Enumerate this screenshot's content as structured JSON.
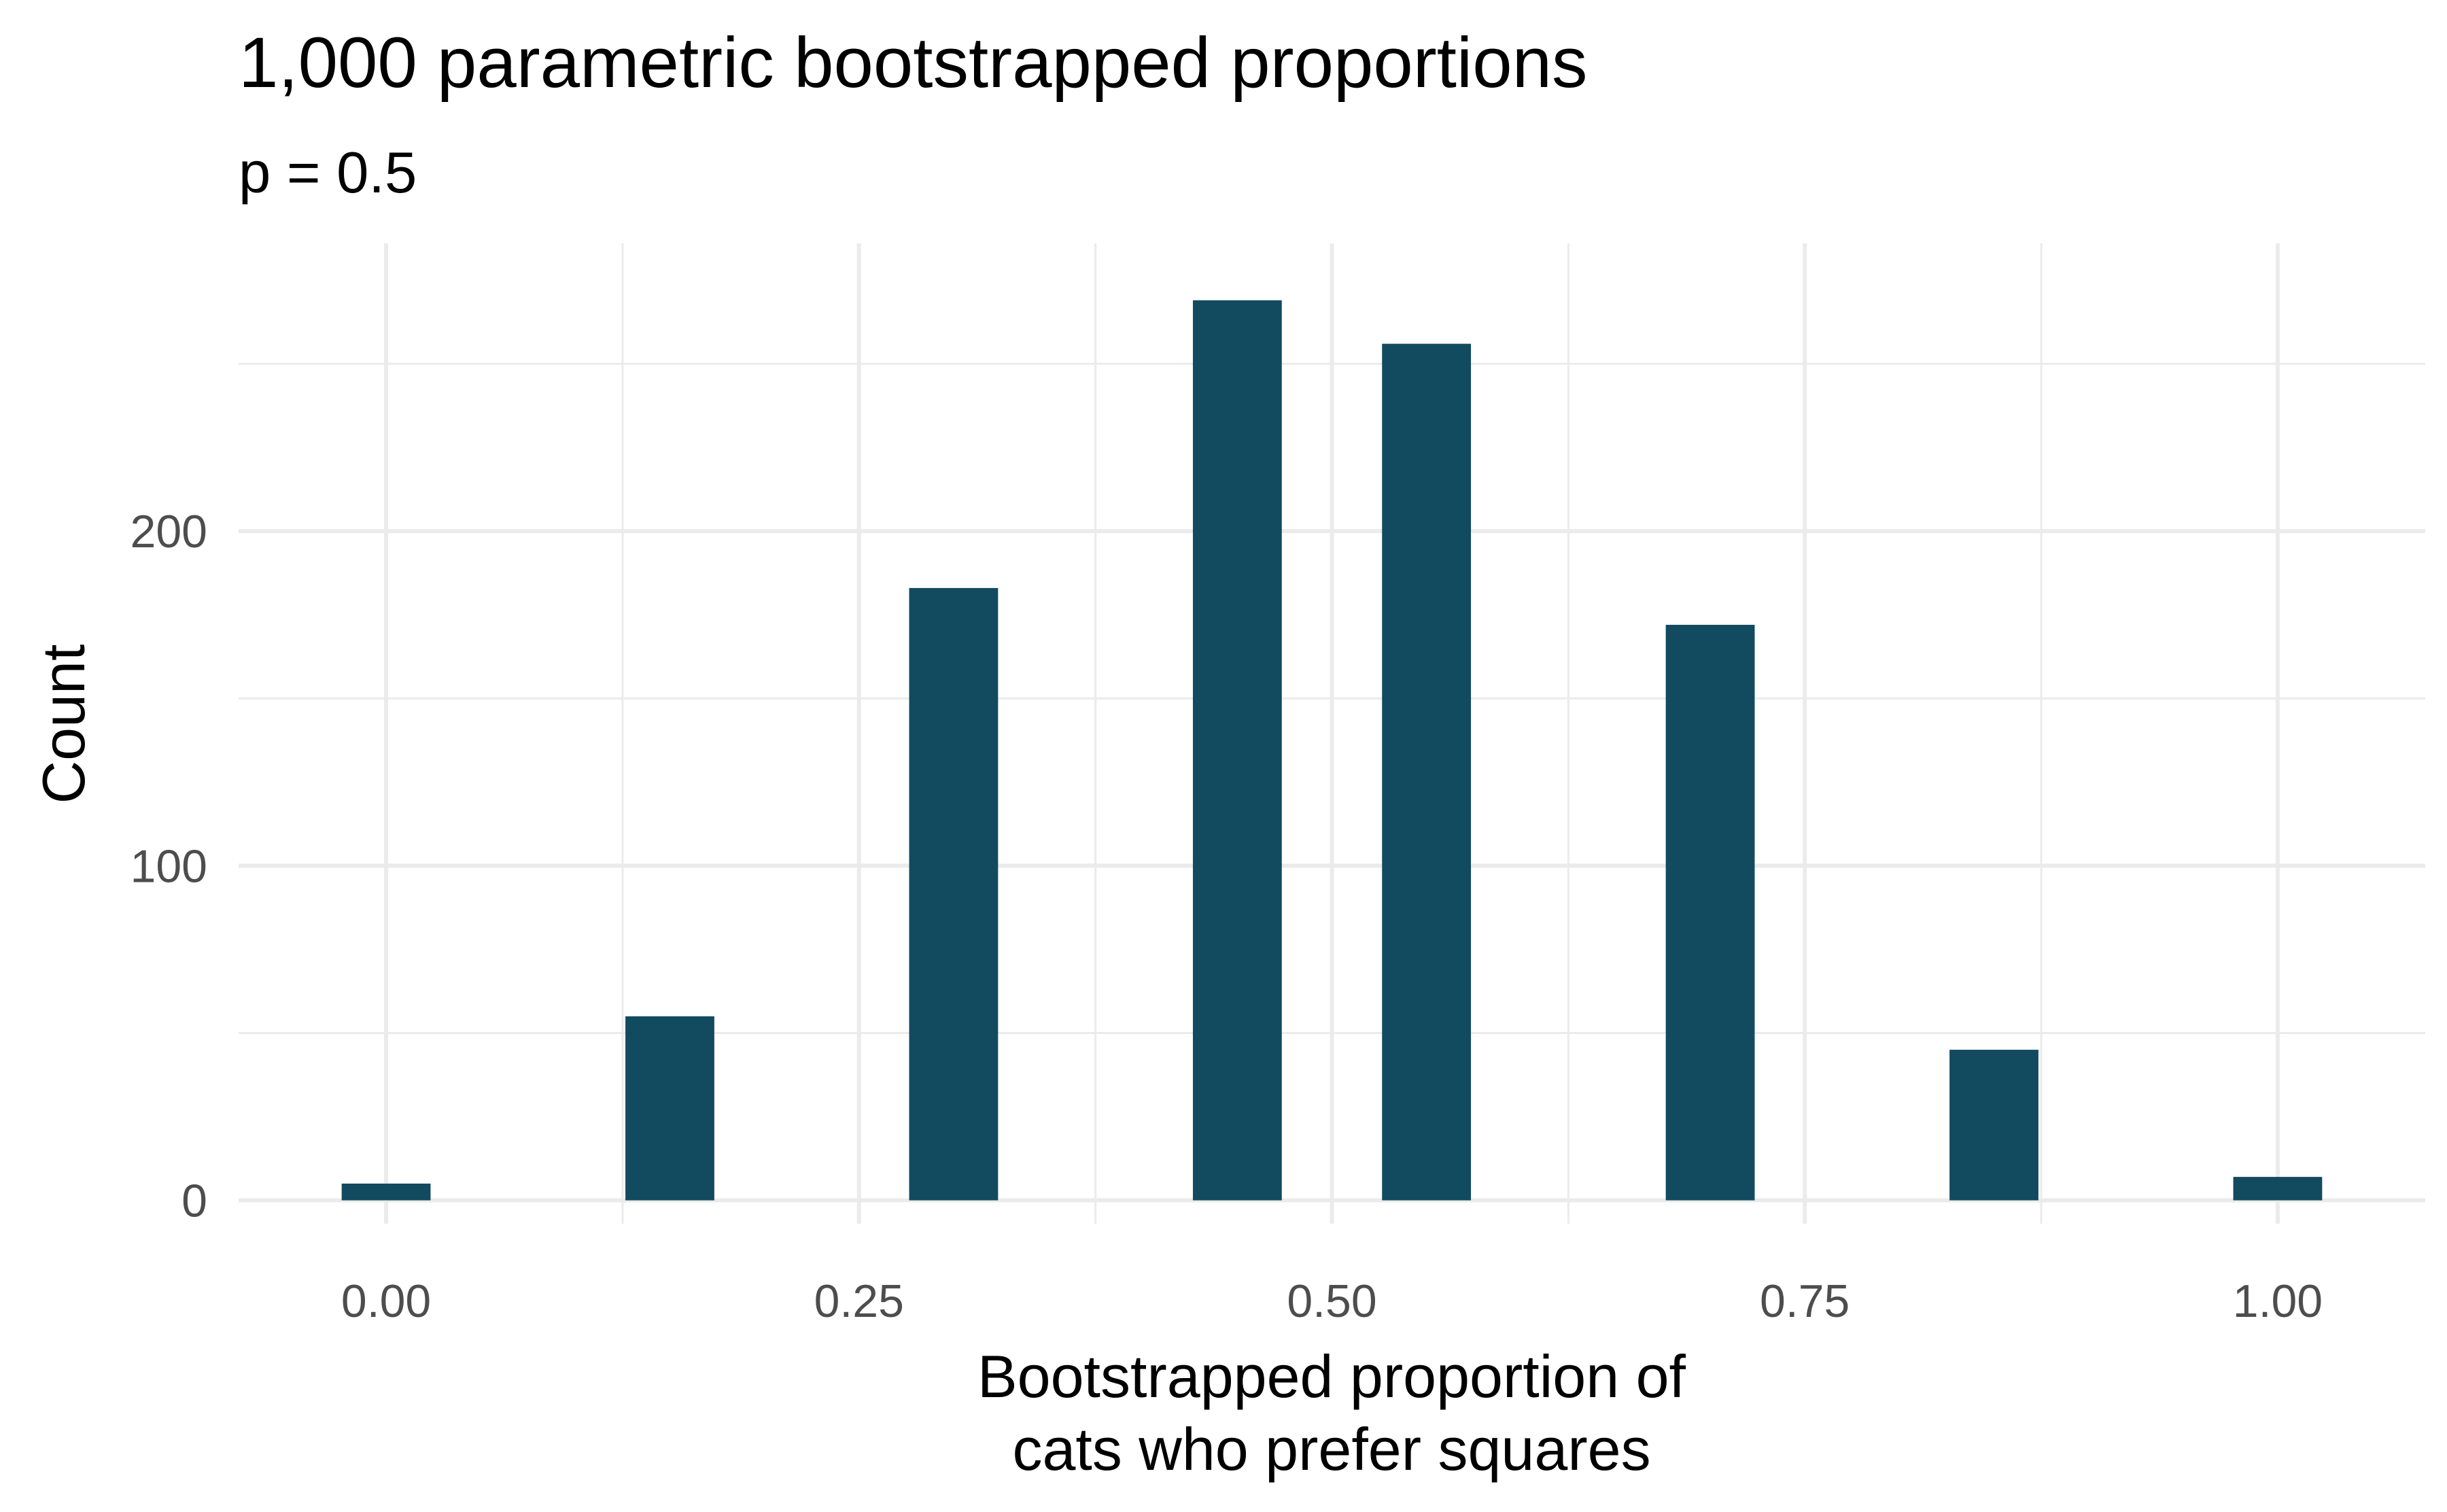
{
  "chart_data": {
    "type": "bar",
    "title": "1,000 parametric bootstrapped proportions",
    "subtitle": "p = 0.5",
    "xlabel_lines": [
      "Bootstrapped proportion of",
      "cats who prefer squares"
    ],
    "ylabel": "Count",
    "x": [
      0.0,
      0.15,
      0.3,
      0.45,
      0.55,
      0.7,
      0.85,
      1.0
    ],
    "values": [
      5,
      55,
      183,
      269,
      256,
      172,
      45,
      7
    ],
    "bar_width": 0.047,
    "xlim": [
      -0.078,
      1.078
    ],
    "ylim": [
      -7,
      286
    ],
    "x_major_ticks": [
      0.0,
      0.25,
      0.5,
      0.75,
      1.0
    ],
    "x_tick_labels": [
      "0.00",
      "0.25",
      "0.50",
      "0.75",
      "1.00"
    ],
    "x_minor_ticks": [
      0.125,
      0.375,
      0.625,
      0.875
    ],
    "y_major_ticks": [
      0,
      100,
      200
    ],
    "y_tick_labels": [
      "0",
      "100",
      "200"
    ],
    "y_minor_ticks": [
      50,
      150,
      250
    ],
    "bar_color": "#124a5f",
    "grid_color": "#ebebeb",
    "grid": true
  }
}
